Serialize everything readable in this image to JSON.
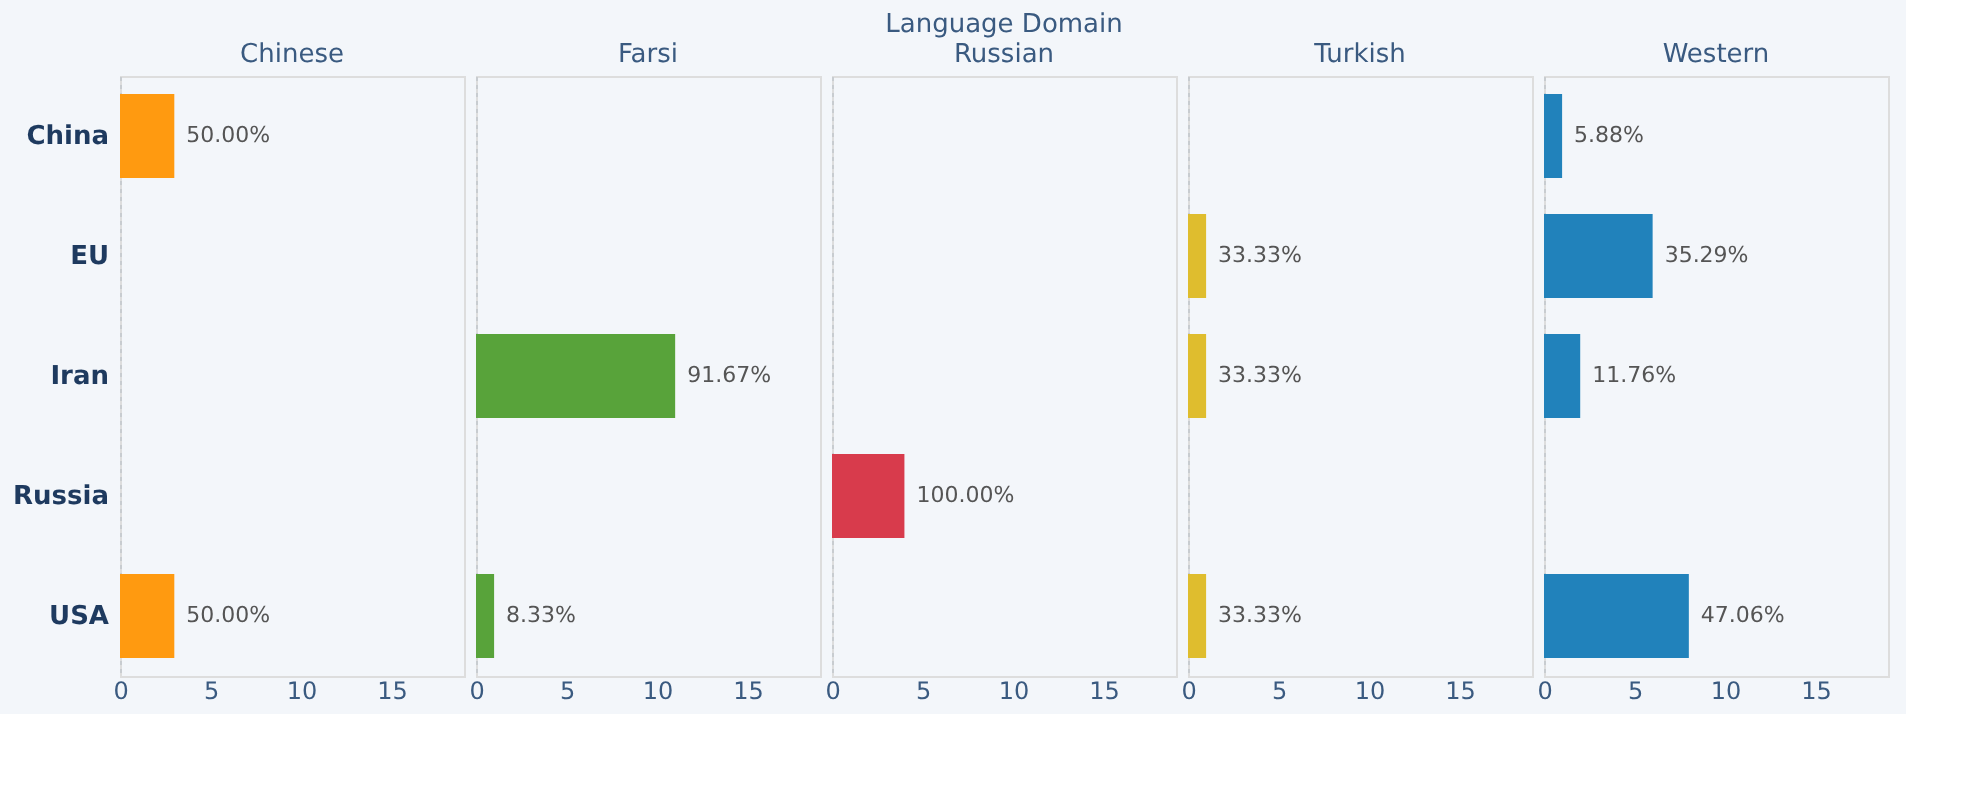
{
  "chart_data": [
    {
      "type": "bar",
      "orientation": "horizontal",
      "title": "Chinese",
      "categories": [
        "China",
        "EU",
        "Iran",
        "Russia",
        "USA"
      ],
      "values": [
        3,
        null,
        null,
        null,
        3
      ],
      "color": "#ff9a10",
      "xlim": [
        0,
        19
      ],
      "xticks": [
        0,
        5,
        10,
        15
      ],
      "annotations": [
        {
          "text": "50.00%",
          "x": 3,
          "y": "China"
        },
        {
          "text": "50.00%",
          "x": 3,
          "y": "USA"
        }
      ]
    },
    {
      "type": "bar",
      "orientation": "horizontal",
      "title": "Farsi",
      "categories": [
        "China",
        "EU",
        "Iran",
        "Russia",
        "USA"
      ],
      "values": [
        null,
        null,
        11,
        null,
        1
      ],
      "color": "#58a33a",
      "xlim": [
        0,
        19
      ],
      "xticks": [
        0,
        5,
        10,
        15
      ],
      "tick_labels": "x",
      "annotations": [
        {
          "text": "91.67%",
          "x": 11,
          "y": "Iran"
        },
        {
          "text": "8.33%",
          "x": 1,
          "y": "USA"
        }
      ]
    },
    {
      "type": "bar",
      "orientation": "horizontal",
      "title": "Russian",
      "categories": [
        "China",
        "EU",
        "Iran",
        "Russia",
        "USA"
      ],
      "values": [
        null,
        null,
        null,
        4,
        null
      ],
      "color": "#d83b4c",
      "xlim": [
        0,
        19
      ],
      "xticks": [
        0,
        5,
        10,
        15
      ],
      "tick_labels": "x",
      "annotations": [
        "Language Domain",
        {
          "text": "100.00%",
          "x": 4,
          "y": "Russia"
        }
      ]
    },
    {
      "type": "bar",
      "orientation": "horizontal",
      "title": "Turkish",
      "categories": [
        "China",
        "EU",
        "Iran",
        "Russia",
        "USA"
      ],
      "values": [
        null,
        1,
        1,
        null,
        1
      ],
      "color": "#dfbd2e",
      "xlim": [
        0,
        19
      ],
      "xticks": [
        0,
        5,
        10,
        15
      ],
      "tick_labels": "x",
      "annotations": [
        {
          "text": "33.33%",
          "x": 1,
          "y": "EU"
        },
        {
          "text": "33.33%",
          "x": 1,
          "y": "Iran"
        },
        {
          "text": "33.33%",
          "x": 1,
          "y": "USA"
        }
      ]
    },
    {
      "type": "bar",
      "orientation": "horizontal",
      "title": "Western",
      "categories": [
        "China",
        "EU",
        "Iran",
        "Russia",
        "USA"
      ],
      "values": [
        1,
        6,
        2,
        null,
        8
      ],
      "color": "#2182bb",
      "xlim": [
        0,
        19
      ],
      "xticks": [
        0,
        5,
        10,
        15
      ],
      "tick_labels": "x",
      "annotations": [
        {
          "text": "5.88%",
          "x": 1,
          "y": "China"
        },
        {
          "text": "35.29%",
          "x": 6,
          "y": "EU"
        },
        {
          "text": "11.76%",
          "x": 2,
          "y": "Iran"
        },
        {
          "text": "47.06%",
          "x": 8,
          "y": "USA"
        }
      ]
    }
  ]
}
